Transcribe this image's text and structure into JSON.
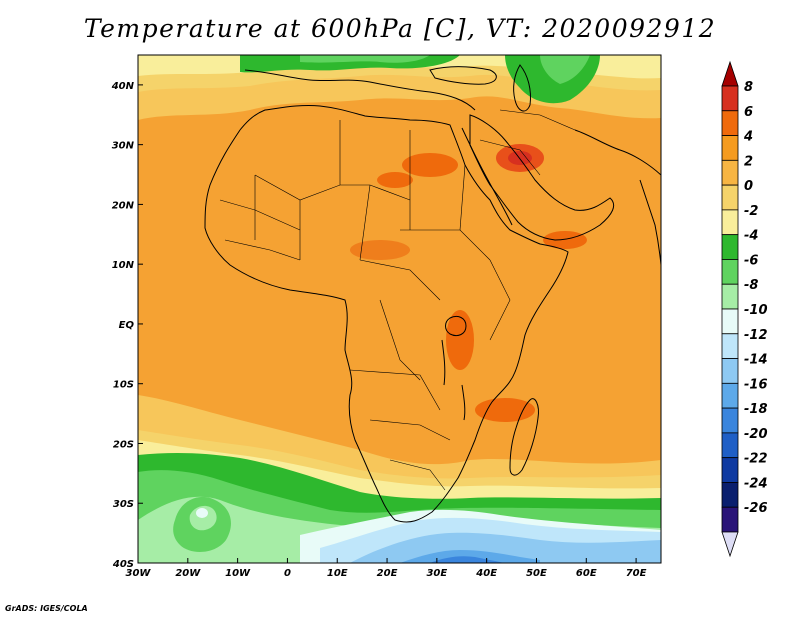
{
  "title": "Temperature at 600hPa [C], VT: 2020092912",
  "credit": "GrADS: IGES/COLA",
  "map": {
    "lon_ticks": [
      "30W",
      "20W",
      "10W",
      "0",
      "10E",
      "20E",
      "30E",
      "40E",
      "50E",
      "60E",
      "70E"
    ],
    "lat_ticks": [
      "40N",
      "30N",
      "20N",
      "10N",
      "EQ",
      "10S",
      "20S",
      "30S",
      "40S"
    ],
    "lon_range": [
      -30,
      75
    ],
    "lat_range": [
      -40,
      45
    ]
  },
  "colorbar": {
    "labels": [
      "8",
      "6",
      "4",
      "2",
      "0",
      "-2",
      "-4",
      "-6",
      "-8",
      "-10",
      "-12",
      "-14",
      "-16",
      "-18",
      "-20",
      "-22",
      "-24",
      "-26"
    ],
    "colors": [
      "#a50000",
      "#d7301f",
      "#ef6a0c",
      "#f59b1f",
      "#f7b543",
      "#f5d36a",
      "#f9ee9b",
      "#2eb82e",
      "#5fd35f",
      "#a6eda6",
      "#e8fbf8",
      "#bfe6fa",
      "#8ec9f2",
      "#5da9e9",
      "#3a85dd",
      "#1f5fc6",
      "#0f3aa1",
      "#0a1f6e",
      "#2a1478",
      "#ddddf5"
    ]
  },
  "legend": {
    "labels": [
      "8",
      "6",
      "4",
      "2",
      "0",
      "-2",
      "-4",
      "-6",
      "-8",
      "-10",
      "-12",
      "-14",
      "-16",
      "-18",
      "-20",
      "-22",
      "-24",
      "-26"
    ]
  }
}
